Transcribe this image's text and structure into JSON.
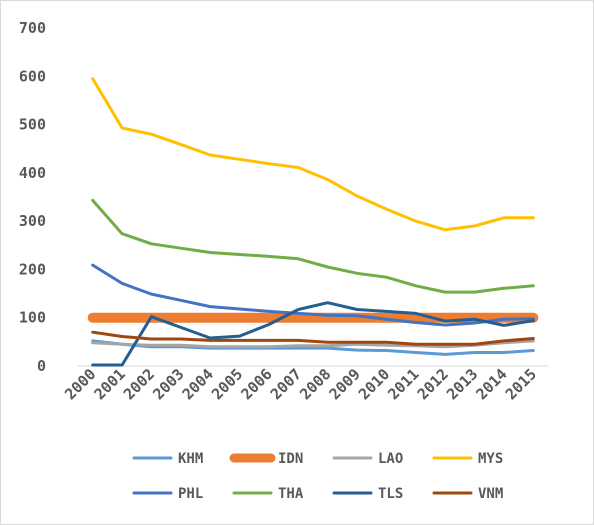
{
  "chart_data": {
    "type": "line",
    "title": "",
    "xlabel": "",
    "ylabel": "",
    "ylim": [
      0,
      700
    ],
    "yticks": [
      0,
      100,
      200,
      300,
      400,
      500,
      600,
      700
    ],
    "x": [
      "2000",
      "2001",
      "2002",
      "2003",
      "2004",
      "2005",
      "2006",
      "2007",
      "2008",
      "2009",
      "2010",
      "2011",
      "2012",
      "2013",
      "2014",
      "2015"
    ],
    "grid": false,
    "legend_position": "bottom",
    "series": [
      {
        "name": "KHM",
        "color": "#5b9bd5",
        "width": 3,
        "values": [
          52,
          45,
          40,
          40,
          37,
          37,
          37,
          37,
          37,
          33,
          32,
          28,
          24,
          28,
          28,
          32
        ]
      },
      {
        "name": "IDN",
        "color": "#ed7d31",
        "width": 10,
        "values": [
          100,
          100,
          100,
          100,
          100,
          100,
          100,
          100,
          100,
          100,
          100,
          100,
          100,
          100,
          100,
          100
        ]
      },
      {
        "name": "LAO",
        "color": "#a5a5a5",
        "width": 3,
        "values": [
          48,
          45,
          43,
          43,
          40,
          40,
          40,
          42,
          42,
          45,
          43,
          42,
          40,
          43,
          48,
          52
        ]
      },
      {
        "name": "MYS",
        "color": "#ffc000",
        "width": 3,
        "values": [
          595,
          493,
          480,
          459,
          437,
          428,
          419,
          411,
          386,
          352,
          325,
          300,
          282,
          290,
          307,
          307
        ]
      },
      {
        "name": "PHL",
        "color": "#4472c4",
        "width": 3,
        "values": [
          209,
          171,
          149,
          136,
          123,
          118,
          113,
          109,
          105,
          104,
          97,
          90,
          85,
          89,
          97,
          98
        ]
      },
      {
        "name": "THA",
        "color": "#70ad47",
        "width": 3,
        "values": [
          343,
          274,
          253,
          244,
          235,
          231,
          227,
          222,
          205,
          192,
          184,
          166,
          153,
          153,
          161,
          166
        ]
      },
      {
        "name": "TLS",
        "color": "#255e91",
        "width": 3,
        "values": [
          2,
          2,
          102,
          80,
          58,
          62,
          86,
          117,
          131,
          117,
          113,
          109,
          93,
          97,
          84,
          94
        ]
      },
      {
        "name": "VNM",
        "color": "#9e480e",
        "width": 3,
        "values": [
          70,
          61,
          56,
          56,
          53,
          53,
          53,
          53,
          49,
          49,
          49,
          45,
          45,
          45,
          52,
          57
        ]
      }
    ]
  }
}
